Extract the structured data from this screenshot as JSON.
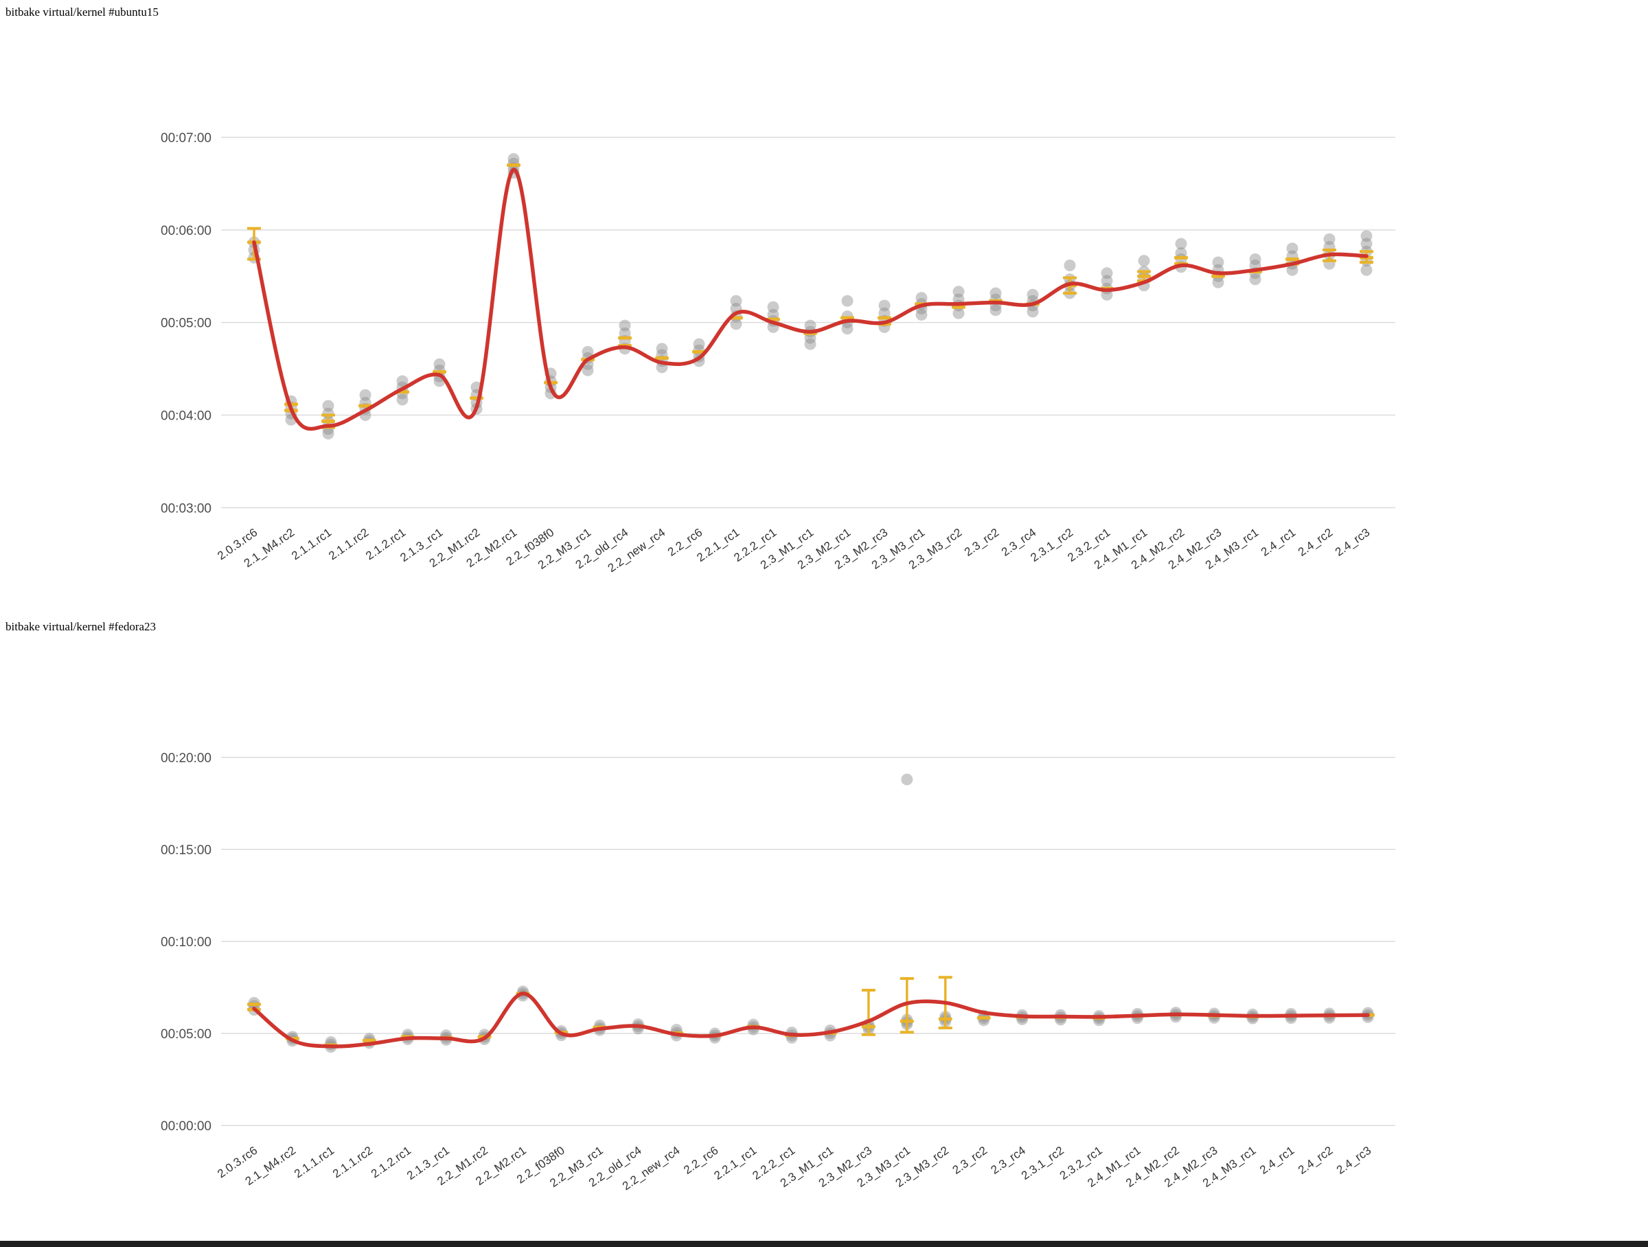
{
  "page": {
    "background": "#ffffff",
    "bottom_bar_color": "#1f1f1f"
  },
  "chart_data": [
    {
      "type": "scatter",
      "title": "bitbake virtual/kernel #ubuntu15",
      "grid": true,
      "legend": "none",
      "y_axis": {
        "tick_labels": [
          "00:07:00",
          "00:06:00",
          "00:05:00",
          "00:04:00",
          "00:03:00"
        ],
        "tick_seconds": [
          420,
          360,
          300,
          240,
          180
        ],
        "ylim_sec": [
          180,
          420
        ]
      },
      "categories": [
        "2.0.3.rc6",
        "2.1_M4.rc2",
        "2.1.1.rc1",
        "2.1.1.rc2",
        "2.1.2.rc1",
        "2.1.3_rc1",
        "2.2_M1.rc2",
        "2.2_M2.rc1",
        "2.2_f038f0",
        "2.2_M3_rc1",
        "2.2_old_rc4",
        "2.2_new_rc4",
        "2.2_rc6",
        "2.2.1_rc1",
        "2.2.2_rc1",
        "2.3_M1_rc1",
        "2.3_M2_rc1",
        "2.3_M2_rc3",
        "2.3_M3_rc1",
        "2.3_M3_rc2",
        "2.3_rc2",
        "2.3_rc4",
        "2.3.1_rc2",
        "2.3.2_rc1",
        "2.4_M1_rc1",
        "2.4_M2_rc2",
        "2.4_M2_rc3",
        "2.4_M3_rc1",
        "2.4_rc1",
        "2.4_rc2",
        "2.4_rc3"
      ],
      "series": [
        {
          "name": "samples",
          "style": "gray-dot",
          "values_sec": [
            [
              352,
              347,
              342
            ],
            [
              249,
              245,
              241,
              237
            ],
            [
              246,
              241,
              236,
              231,
              228
            ],
            [
              253,
              248,
              244,
              240
            ],
            [
              262,
              258,
              254,
              250
            ],
            [
              273,
              269,
              265,
              262
            ],
            [
              258,
              253,
              248,
              244
            ],
            [
              406,
              403,
              400,
              397
            ],
            [
              267,
              262,
              258,
              254
            ],
            [
              281,
              277,
              273,
              269
            ],
            [
              298,
              293,
              288,
              283
            ],
            [
              283,
              279,
              275,
              271
            ],
            [
              286,
              282,
              278,
              275
            ],
            [
              314,
              309,
              304,
              299
            ],
            [
              310,
              305,
              301,
              297
            ],
            [
              298,
              294,
              290,
              286
            ],
            [
              314,
              304,
              300,
              296
            ],
            [
              311,
              306,
              301,
              297
            ],
            [
              316,
              312,
              309,
              305
            ],
            [
              320,
              315,
              311,
              306
            ],
            [
              319,
              315,
              311,
              308
            ],
            [
              318,
              314,
              311,
              307
            ],
            [
              337,
              328,
              324,
              319
            ],
            [
              332,
              327,
              322,
              318
            ],
            [
              340,
              333,
              329,
              324
            ],
            [
              351,
              345,
              341,
              336
            ],
            [
              339,
              334,
              330,
              326
            ],
            [
              341,
              337,
              332,
              328
            ],
            [
              348,
              343,
              338,
              334
            ],
            [
              354,
              349,
              344,
              338
            ],
            [
              356,
              351,
              346,
              340,
              334
            ]
          ]
        },
        {
          "name": "median",
          "style": "yellow-dash",
          "values_sec": [
            [
              352
            ],
            [
              247,
              243
            ],
            [
              236
            ],
            [
              246
            ],
            [
              255
            ],
            [
              268
            ],
            [
              251
            ],
            [
              402
            ],
            [
              261
            ],
            [
              276
            ],
            [
              290,
              285
            ],
            [
              277
            ],
            [
              281
            ],
            [
              303
            ],
            [
              302
            ],
            [
              293
            ],
            [
              303
            ],
            [
              299,
              303
            ],
            [
              312
            ],
            [
              310
            ],
            [
              314
            ],
            [
              312
            ],
            [
              324
            ],
            [
              322
            ],
            [
              330
            ],
            [
              338,
              342
            ],
            [
              330
            ],
            [
              333
            ],
            [
              338,
              341
            ],
            [
              344
            ],
            [
              342
            ]
          ]
        },
        {
          "name": "error-range",
          "style": "yellow-errorbar",
          "values_sec": [
            [
              341,
              361
            ],
            null,
            [
              232,
              240
            ],
            null,
            null,
            null,
            null,
            null,
            null,
            null,
            null,
            null,
            null,
            null,
            null,
            null,
            null,
            null,
            null,
            null,
            null,
            null,
            [
              319,
              329
            ],
            null,
            [
              327,
              333
            ],
            null,
            null,
            null,
            null,
            [
              340,
              347
            ],
            [
              339,
              346
            ]
          ]
        },
        {
          "name": "trend",
          "style": "red-line",
          "values_sec": [
            352,
            244,
            233,
            243,
            257,
            266,
            245,
            399,
            258,
            276,
            284,
            274,
            277,
            306,
            300,
            294,
            301,
            300,
            311,
            312,
            313,
            312,
            325,
            321,
            326,
            337,
            332,
            334,
            338,
            344,
            343
          ]
        }
      ],
      "colors": {
        "trend": "#cf352e",
        "median": "#e9b32a",
        "samples": "#8c8c8c",
        "grid": "#dcdcdc",
        "axis_text": "#4d4d4d",
        "xlabel_text": "#333333"
      }
    },
    {
      "type": "scatter",
      "title": "bitbake virtual/kernel #fedora23",
      "grid": true,
      "legend": "none",
      "y_axis": {
        "tick_labels": [
          "00:20:00",
          "00:15:00",
          "00:10:00",
          "00:05:00",
          "00:00:00"
        ],
        "tick_seconds": [
          1200,
          900,
          600,
          300,
          0
        ],
        "ylim_sec": [
          0,
          1200
        ]
      },
      "categories": [
        "2.0.3.rc6",
        "2.1_M4.rc2",
        "2.1.1.rc1",
        "2.1.1.rc2",
        "2.1.2.rc1",
        "2.1.3_rc1",
        "2.2_M1.rc2",
        "2.2_M2.rc1",
        "2.2_f038f0",
        "2.2_M3_rc1",
        "2.2_old_rc4",
        "2.2_new_rc4",
        "2.2_rc6",
        "2.2.1_rc1",
        "2.2.2_rc1",
        "2.3_M1_rc1",
        "2.3_M2_rc3",
        "2.3_M3_rc1",
        "2.3_M3_rc2",
        "2.3_rc2",
        "2.3_rc4",
        "2.3.1_rc2",
        "2.3.2_rc1",
        "2.4_M1_rc1",
        "2.4_M2_rc2",
        "2.4_M2_rc3",
        "2.4_M3_rc1",
        "2.4_rc1",
        "2.4_rc2",
        "2.4_rc3"
      ],
      "series": [
        {
          "name": "samples",
          "style": "gray-dot",
          "values_sec": [
            [
              400,
              390,
              377
            ],
            [
              289,
              283,
              276
            ],
            [
              272,
              264,
              256
            ],
            [
              283,
              276,
              269
            ],
            [
              296,
              288,
              281
            ],
            [
              294,
              286,
              279
            ],
            [
              296,
              288,
              281
            ],
            [
              437,
              430,
              423
            ],
            [
              308,
              301,
              294
            ],
            [
              326,
              318,
              311
            ],
            [
              330,
              323,
              316
            ],
            [
              312,
              302,
              293
            ],
            [
              300,
              293,
              286
            ],
            [
              329,
              321,
              313
            ],
            [
              303,
              294,
              286
            ],
            [
              310,
              301,
              293
            ],
            [
              330,
              322,
              314
            ],
            [
              1128,
              345,
              337,
              330
            ],
            [
              355,
              347,
              339
            ],
            [
              358,
              350,
              343
            ],
            [
              360,
              353,
              346
            ],
            [
              360,
              352,
              345
            ],
            [
              357,
              350,
              343
            ],
            [
              364,
              357,
              350
            ],
            [
              368,
              361,
              354
            ],
            [
              365,
              358,
              351
            ],
            [
              362,
              355,
              349
            ],
            [
              364,
              357,
              350
            ],
            [
              365,
              358,
              351
            ],
            [
              367,
              360,
              353
            ]
          ]
        },
        {
          "name": "median",
          "style": "yellow-dash",
          "values_sec": [
            [
              395,
              378
            ],
            [
              283
            ],
            [
              262
            ],
            [
              277
            ],
            [
              289
            ],
            [
              286
            ],
            [
              289
            ],
            [
              430
            ],
            [
              303
            ],
            [
              320
            ],
            [
              324
            ],
            [
              301
            ],
            [
              293
            ],
            [
              322
            ],
            [
              294
            ],
            [
              301
            ],
            [
              322
            ],
            [
              340
            ],
            [
              347
            ],
            [
              351
            ],
            [
              354
            ],
            [
              353
            ],
            [
              351
            ],
            [
              357
            ],
            [
              361
            ],
            [
              358
            ],
            [
              355
            ],
            [
              357
            ],
            [
              358
            ],
            [
              360
            ]
          ]
        },
        {
          "name": "error-range",
          "style": "yellow-errorbar",
          "values_sec": [
            null,
            null,
            null,
            null,
            null,
            null,
            null,
            null,
            null,
            null,
            null,
            null,
            null,
            null,
            null,
            null,
            [
              296,
              441
            ],
            [
              304,
              479
            ],
            [
              318,
              483
            ],
            null,
            null,
            null,
            null,
            null,
            null,
            null,
            null,
            null,
            null,
            null
          ]
        },
        {
          "name": "trend",
          "style": "red-line",
          "values_sec": [
            381,
            278,
            258,
            266,
            284,
            284,
            285,
            430,
            300,
            315,
            324,
            297,
            293,
            320,
            296,
            304,
            340,
            398,
            400,
            368,
            356,
            355,
            354,
            358,
            362,
            360,
            357,
            358,
            359,
            360
          ]
        }
      ],
      "colors": {
        "trend": "#cf352e",
        "median": "#e9b32a",
        "samples": "#8c8c8c",
        "grid": "#dcdcdc",
        "axis_text": "#4d4d4d",
        "xlabel_text": "#333333"
      }
    }
  ]
}
